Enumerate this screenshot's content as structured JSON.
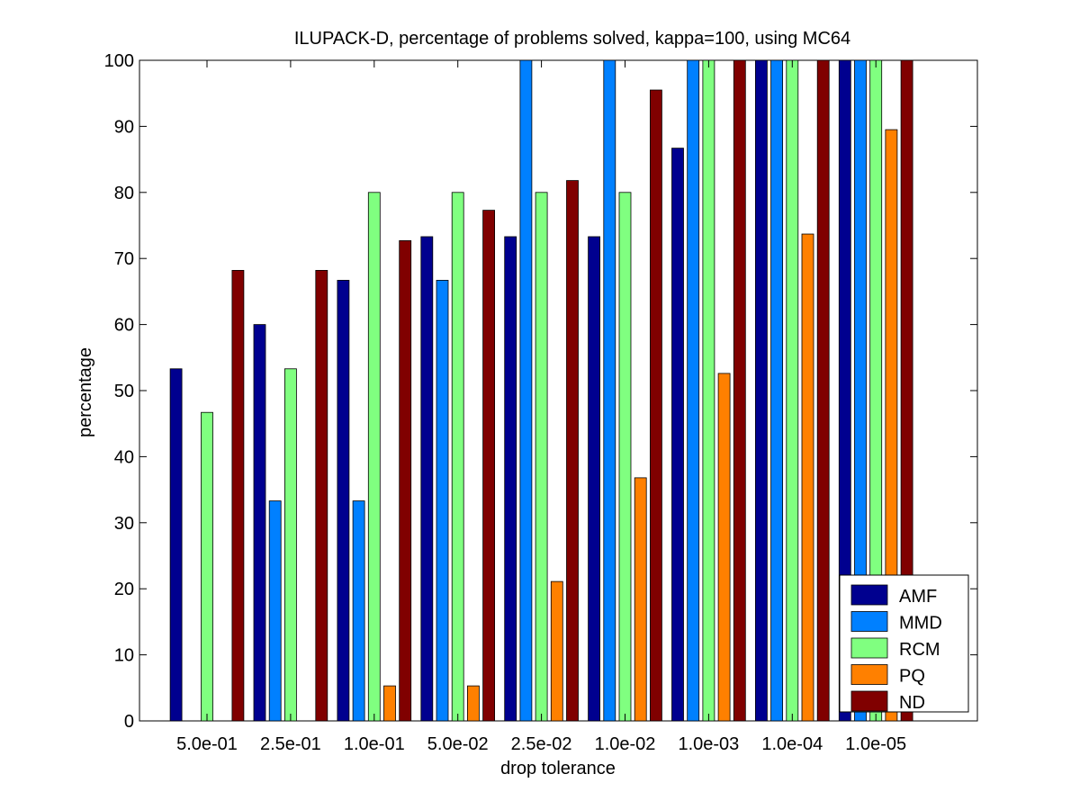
{
  "chart_data": {
    "type": "bar",
    "title": "ILUPACK-D, percentage of problems solved, kappa=100, using MC64",
    "xlabel": "drop tolerance",
    "ylabel": "percentage",
    "ylim": [
      0,
      100
    ],
    "yticks": [
      0,
      10,
      20,
      30,
      40,
      50,
      60,
      70,
      80,
      90,
      100
    ],
    "categories": [
      "5.0e-01",
      "2.5e-01",
      "1.0e-01",
      "5.0e-02",
      "2.5e-02",
      "1.0e-02",
      "1.0e-03",
      "1.0e-04",
      "1.0e-05"
    ],
    "series": [
      {
        "name": "AMF",
        "color": "#00008f",
        "values": [
          53.3,
          60.0,
          66.7,
          73.3,
          73.3,
          73.3,
          86.7,
          100,
          100
        ]
      },
      {
        "name": "MMD",
        "color": "#0080ff",
        "values": [
          0,
          33.3,
          33.3,
          66.7,
          100,
          100,
          100,
          100,
          100
        ]
      },
      {
        "name": "RCM",
        "color": "#80ff80",
        "values": [
          46.7,
          53.3,
          80.0,
          80.0,
          80.0,
          80.0,
          100,
          100,
          100
        ]
      },
      {
        "name": "PQ",
        "color": "#ff8000",
        "values": [
          0,
          0,
          5.3,
          5.3,
          21.1,
          36.8,
          52.6,
          73.7,
          89.5
        ]
      },
      {
        "name": "ND",
        "color": "#800000",
        "values": [
          68.2,
          68.2,
          72.7,
          77.3,
          81.8,
          95.5,
          100,
          100,
          100
        ]
      }
    ],
    "legend_position": "bottom-right",
    "grid": false
  }
}
